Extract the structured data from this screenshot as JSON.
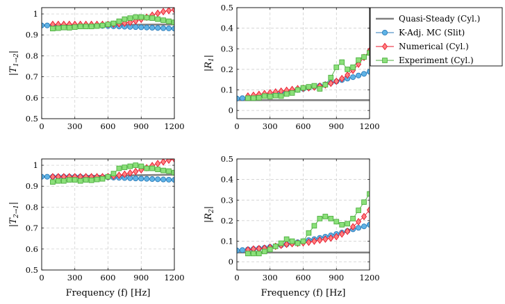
{
  "legend": {
    "entries": [
      {
        "label": "Quasi-Steady (Cyl.)",
        "color": "#808080",
        "marker": "none"
      },
      {
        "label": "K-Adj. MC (Slit)",
        "color": "#3d9bd6",
        "marker": "circle"
      },
      {
        "label": "Numerical (Cyl.)",
        "color": "#ff3b3b",
        "marker": "diamond"
      },
      {
        "label": "Experiment (Cyl.)",
        "color": "#6ad45a",
        "marker": "square"
      }
    ],
    "placement": "right-top"
  },
  "colors": {
    "quasi": "#808080",
    "slit_fill": "#5fb3e6",
    "slit_stroke": "#2a7ab8",
    "num_fill": "#ff8080",
    "num_stroke": "#e8162a",
    "exp_fill": "#8be07a",
    "exp_stroke": "#4cae3e"
  },
  "chart_data": [
    {
      "type": "line",
      "id": "T12",
      "ylabel": "|T1→2|",
      "ylabel_main": "|T",
      "ylabel_sub": "1→2",
      "xlabel": "",
      "xlim": [
        0,
        1200
      ],
      "ylim": [
        0.5,
        1.03
      ],
      "xticks": [
        0,
        300,
        600,
        900,
        1200
      ],
      "yticks": [
        0.5,
        0.6,
        0.7,
        0.8,
        0.9,
        1
      ],
      "ytick_labels": [
        "0.5",
        "0.6",
        "0.7",
        "0.8",
        "0.9",
        "1"
      ],
      "grid": true,
      "series": [
        {
          "name": "Quasi-Steady (Cyl.)",
          "x": [
            0,
            1200
          ],
          "y": [
            0.945,
            0.95
          ]
        },
        {
          "name": "K-Adj. MC (Slit)",
          "x": [
            0,
            50,
            100,
            150,
            200,
            250,
            300,
            350,
            400,
            450,
            500,
            550,
            600,
            650,
            700,
            750,
            800,
            850,
            900,
            950,
            1000,
            1050,
            1100,
            1150,
            1200
          ],
          "y": [
            0.945,
            0.945,
            0.945,
            0.945,
            0.945,
            0.945,
            0.945,
            0.945,
            0.944,
            0.944,
            0.943,
            0.943,
            0.942,
            0.941,
            0.94,
            0.939,
            0.938,
            0.937,
            0.936,
            0.935,
            0.934,
            0.933,
            0.932,
            0.931,
            0.93
          ]
        },
        {
          "name": "Numerical (Cyl.)",
          "x": [
            100,
            150,
            200,
            250,
            300,
            350,
            400,
            450,
            500,
            550,
            600,
            650,
            700,
            750,
            800,
            850,
            900,
            950,
            1000,
            1050,
            1100,
            1150,
            1200
          ],
          "y": [
            0.95,
            0.95,
            0.95,
            0.95,
            0.95,
            0.95,
            0.95,
            0.95,
            0.95,
            0.95,
            0.95,
            0.951,
            0.953,
            0.956,
            0.96,
            0.966,
            0.974,
            0.984,
            0.994,
            1.003,
            1.011,
            1.016,
            1.02
          ]
        },
        {
          "name": "Experiment (Cyl.)",
          "x": [
            100,
            150,
            200,
            250,
            300,
            350,
            400,
            450,
            500,
            550,
            600,
            650,
            700,
            750,
            800,
            850,
            900,
            950,
            1000,
            1050,
            1100,
            1150,
            1200
          ],
          "y": [
            0.93,
            0.932,
            0.935,
            0.934,
            0.937,
            0.94,
            0.94,
            0.94,
            0.942,
            0.945,
            0.95,
            0.955,
            0.965,
            0.975,
            0.98,
            0.985,
            0.985,
            0.982,
            0.98,
            0.975,
            0.97,
            0.965,
            0.96
          ]
        }
      ]
    },
    {
      "type": "line",
      "id": "R1",
      "ylabel": "|R1|",
      "ylabel_main": "|R",
      "ylabel_sub": "1",
      "xlabel": "",
      "xlim": [
        0,
        1200
      ],
      "ylim": [
        -0.04,
        0.5
      ],
      "xticks": [
        0,
        300,
        600,
        900,
        1200
      ],
      "yticks": [
        0,
        0.1,
        0.2,
        0.3,
        0.4,
        0.5
      ],
      "ytick_labels": [
        "0",
        "0.1",
        "0.2",
        "0.3",
        "0.4",
        "0.5"
      ],
      "grid": true,
      "series": [
        {
          "name": "Quasi-Steady (Cyl.)",
          "x": [
            0,
            1200
          ],
          "y": [
            0.05,
            0.05
          ]
        },
        {
          "name": "K-Adj. MC (Slit)",
          "x": [
            0,
            50,
            100,
            150,
            200,
            250,
            300,
            350,
            400,
            450,
            500,
            550,
            600,
            650,
            700,
            750,
            800,
            850,
            900,
            950,
            1000,
            1050,
            1100,
            1150,
            1200
          ],
          "y": [
            0.058,
            0.06,
            0.062,
            0.065,
            0.068,
            0.072,
            0.076,
            0.08,
            0.085,
            0.09,
            0.095,
            0.1,
            0.105,
            0.11,
            0.115,
            0.12,
            0.127,
            0.134,
            0.141,
            0.148,
            0.155,
            0.162,
            0.17,
            0.178,
            0.188
          ]
        },
        {
          "name": "Numerical (Cyl.)",
          "x": [
            100,
            150,
            200,
            250,
            300,
            350,
            400,
            450,
            500,
            550,
            600,
            650,
            700,
            750,
            800,
            850,
            900,
            950,
            1000,
            1050,
            1100,
            1150,
            1200
          ],
          "y": [
            0.07,
            0.074,
            0.078,
            0.082,
            0.086,
            0.09,
            0.094,
            0.098,
            0.102,
            0.106,
            0.108,
            0.11,
            0.114,
            0.118,
            0.124,
            0.132,
            0.142,
            0.155,
            0.172,
            0.195,
            0.225,
            0.258,
            0.29
          ]
        },
        {
          "name": "Experiment (Cyl.)",
          "x": [
            100,
            150,
            200,
            250,
            300,
            350,
            400,
            450,
            500,
            550,
            600,
            650,
            700,
            750,
            800,
            850,
            900,
            950,
            1000,
            1050,
            1100,
            1150,
            1200
          ],
          "y": [
            0.06,
            0.06,
            0.062,
            0.07,
            0.068,
            0.072,
            0.07,
            0.08,
            0.085,
            0.1,
            0.11,
            0.115,
            0.12,
            0.105,
            0.125,
            0.16,
            0.21,
            0.235,
            0.2,
            0.21,
            0.245,
            0.26,
            0.28
          ]
        }
      ]
    },
    {
      "type": "line",
      "id": "T21",
      "ylabel": "|T2→1|",
      "ylabel_main": "|T",
      "ylabel_sub": "2→1",
      "xlabel": "Frequency (f) [Hz]",
      "xlim": [
        0,
        1200
      ],
      "ylim": [
        0.5,
        1.03
      ],
      "xticks": [
        0,
        300,
        600,
        900,
        1200
      ],
      "yticks": [
        0.5,
        0.6,
        0.7,
        0.8,
        0.9,
        1
      ],
      "ytick_labels": [
        "0.5",
        "0.6",
        "0.7",
        "0.8",
        "0.9",
        "1"
      ],
      "grid": true,
      "series": [
        {
          "name": "Quasi-Steady (Cyl.)",
          "x": [
            0,
            1200
          ],
          "y": [
            0.945,
            0.955
          ]
        },
        {
          "name": "K-Adj. MC (Slit)",
          "x": [
            0,
            50,
            100,
            150,
            200,
            250,
            300,
            350,
            400,
            450,
            500,
            550,
            600,
            650,
            700,
            750,
            800,
            850,
            900,
            950,
            1000,
            1050,
            1100,
            1150,
            1200
          ],
          "y": [
            0.945,
            0.945,
            0.945,
            0.945,
            0.945,
            0.945,
            0.945,
            0.945,
            0.944,
            0.944,
            0.943,
            0.943,
            0.942,
            0.941,
            0.94,
            0.939,
            0.938,
            0.937,
            0.936,
            0.935,
            0.934,
            0.933,
            0.932,
            0.931,
            0.93
          ]
        },
        {
          "name": "Numerical (Cyl.)",
          "x": [
            100,
            150,
            200,
            250,
            300,
            350,
            400,
            450,
            500,
            550,
            600,
            650,
            700,
            750,
            800,
            850,
            900,
            950,
            1000,
            1050,
            1100,
            1150,
            1200
          ],
          "y": [
            0.945,
            0.945,
            0.945,
            0.945,
            0.945,
            0.945,
            0.945,
            0.945,
            0.945,
            0.945,
            0.946,
            0.948,
            0.952,
            0.957,
            0.963,
            0.97,
            0.978,
            0.988,
            0.998,
            1.008,
            1.016,
            1.024,
            1.03
          ]
        },
        {
          "name": "Experiment (Cyl.)",
          "x": [
            100,
            150,
            200,
            250,
            300,
            350,
            400,
            450,
            500,
            550,
            600,
            650,
            700,
            750,
            800,
            850,
            900,
            950,
            1000,
            1050,
            1100,
            1150,
            1200
          ],
          "y": [
            0.92,
            0.925,
            0.925,
            0.93,
            0.93,
            0.925,
            0.93,
            0.928,
            0.932,
            0.935,
            0.945,
            0.96,
            0.985,
            0.99,
            0.995,
            1.0,
            0.995,
            0.985,
            0.985,
            0.98,
            0.975,
            0.972,
            0.965
          ]
        }
      ]
    },
    {
      "type": "line",
      "id": "R2",
      "ylabel": "|R2|",
      "ylabel_main": "|R",
      "ylabel_sub": "2",
      "xlabel": "Frequency (f) [Hz]",
      "xlim": [
        0,
        1200
      ],
      "ylim": [
        -0.04,
        0.5
      ],
      "xticks": [
        0,
        300,
        600,
        900,
        1200
      ],
      "yticks": [
        0,
        0.1,
        0.2,
        0.3,
        0.4,
        0.5
      ],
      "ytick_labels": [
        "0",
        "0.1",
        "0.2",
        "0.3",
        "0.4",
        "0.5"
      ],
      "grid": true,
      "series": [
        {
          "name": "Quasi-Steady (Cyl.)",
          "x": [
            0,
            1200
          ],
          "y": [
            0.045,
            0.045
          ]
        },
        {
          "name": "K-Adj. MC (Slit)",
          "x": [
            0,
            50,
            100,
            150,
            200,
            250,
            300,
            350,
            400,
            450,
            500,
            550,
            600,
            650,
            700,
            750,
            800,
            850,
            900,
            950,
            1000,
            1050,
            1100,
            1150,
            1200
          ],
          "y": [
            0.055,
            0.057,
            0.06,
            0.062,
            0.065,
            0.068,
            0.072,
            0.076,
            0.08,
            0.085,
            0.09,
            0.095,
            0.1,
            0.105,
            0.11,
            0.116,
            0.122,
            0.128,
            0.135,
            0.142,
            0.15,
            0.158,
            0.165,
            0.172,
            0.18
          ]
        },
        {
          "name": "Numerical (Cyl.)",
          "x": [
            100,
            150,
            200,
            250,
            300,
            350,
            400,
            450,
            500,
            550,
            600,
            650,
            700,
            750,
            800,
            850,
            900,
            950,
            1000,
            1050,
            1100,
            1150,
            1200
          ],
          "y": [
            0.058,
            0.062,
            0.064,
            0.066,
            0.07,
            0.075,
            0.08,
            0.085,
            0.088,
            0.09,
            0.092,
            0.095,
            0.1,
            0.105,
            0.11,
            0.115,
            0.122,
            0.135,
            0.148,
            0.17,
            0.195,
            0.22,
            0.252
          ]
        },
        {
          "name": "Experiment (Cyl.)",
          "x": [
            100,
            150,
            200,
            250,
            300,
            350,
            400,
            450,
            500,
            550,
            600,
            650,
            700,
            750,
            800,
            850,
            900,
            950,
            1000,
            1050,
            1100,
            1150,
            1200
          ],
          "y": [
            0.04,
            0.04,
            0.04,
            0.05,
            0.06,
            0.075,
            0.09,
            0.11,
            0.1,
            0.09,
            0.1,
            0.14,
            0.175,
            0.21,
            0.22,
            0.21,
            0.195,
            0.18,
            0.185,
            0.21,
            0.25,
            0.29,
            0.33
          ]
        }
      ]
    }
  ]
}
